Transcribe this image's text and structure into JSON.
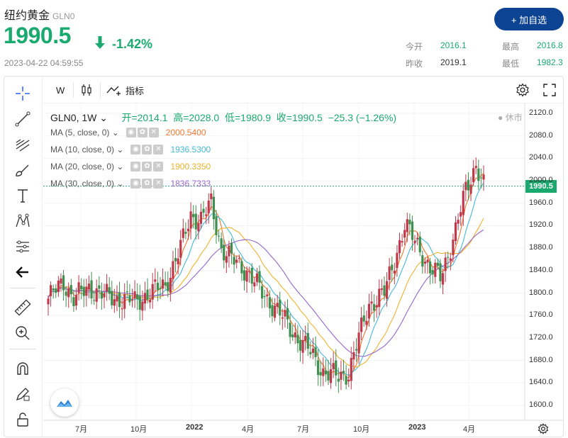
{
  "header": {
    "name": "纽约黄金",
    "code": "GLN0",
    "price": "1990.5",
    "change_pct": "-1.42%",
    "timestamp": "2023-04-22 04:59:55",
    "add_button": "+ 加自选"
  },
  "stats": [
    {
      "label": "今开",
      "value": "2016.1"
    },
    {
      "label": "最高",
      "value": "2016.8"
    },
    {
      "label": "昨收",
      "value": "2019.1"
    },
    {
      "label": "最低",
      "value": "1982.3"
    }
  ],
  "toolbar": {
    "interval": "W",
    "indicators": "指标"
  },
  "legend": {
    "symbol": "GLN0, 1W",
    "open": "开=2014.1",
    "high": "高=2028.0",
    "low": "低=1980.9",
    "close": "收=1990.5",
    "change": "−25.3 (−1.26%)",
    "status": "休市"
  },
  "ma": [
    {
      "label": "MA (5, close, 0)",
      "value": "2000.5400",
      "color": "#f0762f"
    },
    {
      "label": "MA (10, close, 0)",
      "value": "1936.5300",
      "color": "#44b8d9"
    },
    {
      "label": "MA (20, close, 0)",
      "value": "1900.3350",
      "color": "#f0b22c"
    },
    {
      "label": "MA (30, close, 0)",
      "value": "1836.7333",
      "color": "#9466c9"
    }
  ],
  "price_tag": "1990.5",
  "colors": {
    "up": "#1aaa6f",
    "candle_up": "#3f8f4f",
    "candle_down": "#c0394a",
    "brand": "#0c4393"
  },
  "chart_data": {
    "type": "candlestick",
    "y_ticks": [
      "2120.0",
      "2080.0",
      "2040.0",
      "2000.0",
      "1960.0",
      "1920.0",
      "1880.0",
      "1840.0",
      "1800.0",
      "1760.0",
      "1720.0",
      "1680.0",
      "1640.0",
      "1600.0"
    ],
    "x_ticks": [
      "7月",
      "10月",
      "2022",
      "4月",
      "7月",
      "10月",
      "2023",
      "4月"
    ],
    "ylim": [
      1585,
      2130
    ]
  }
}
